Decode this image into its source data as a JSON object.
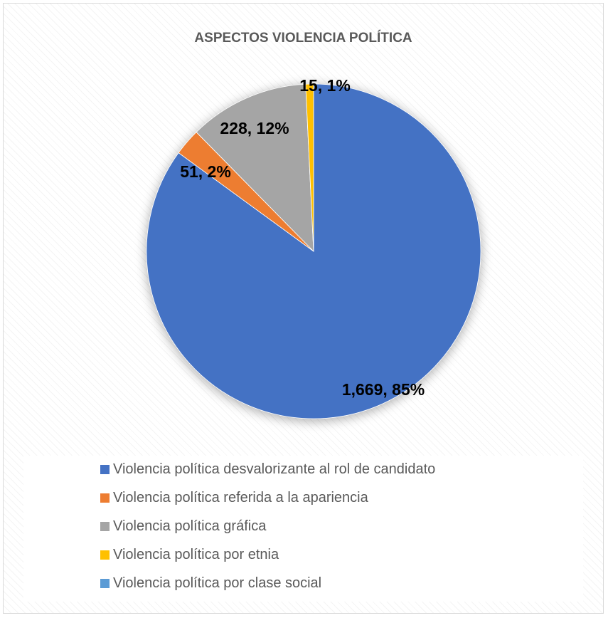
{
  "chart_data": {
    "type": "pie",
    "title": "ASPECTOS VIOLENCIA POLÍTICA",
    "slices": [
      {
        "name": "Violencia política desvalorizante al rol de candidato",
        "value": 1669,
        "label": "1,669, 85%",
        "color": "#4472c4"
      },
      {
        "name": "Violencia política referida a la apariencia",
        "value": 51,
        "label": "51, 2%",
        "color": "#ed7d31"
      },
      {
        "name": "Violencia política gráfica",
        "value": 228,
        "label": "228, 12%",
        "color": "#a5a5a5"
      },
      {
        "name": "Violencia política por etnia",
        "value": 15,
        "label": "15, 1%",
        "color": "#ffc000"
      },
      {
        "name": "Violencia política por clase social",
        "value": 0,
        "label": "",
        "color": "#5b9bd5"
      }
    ],
    "legend": "bottom"
  }
}
